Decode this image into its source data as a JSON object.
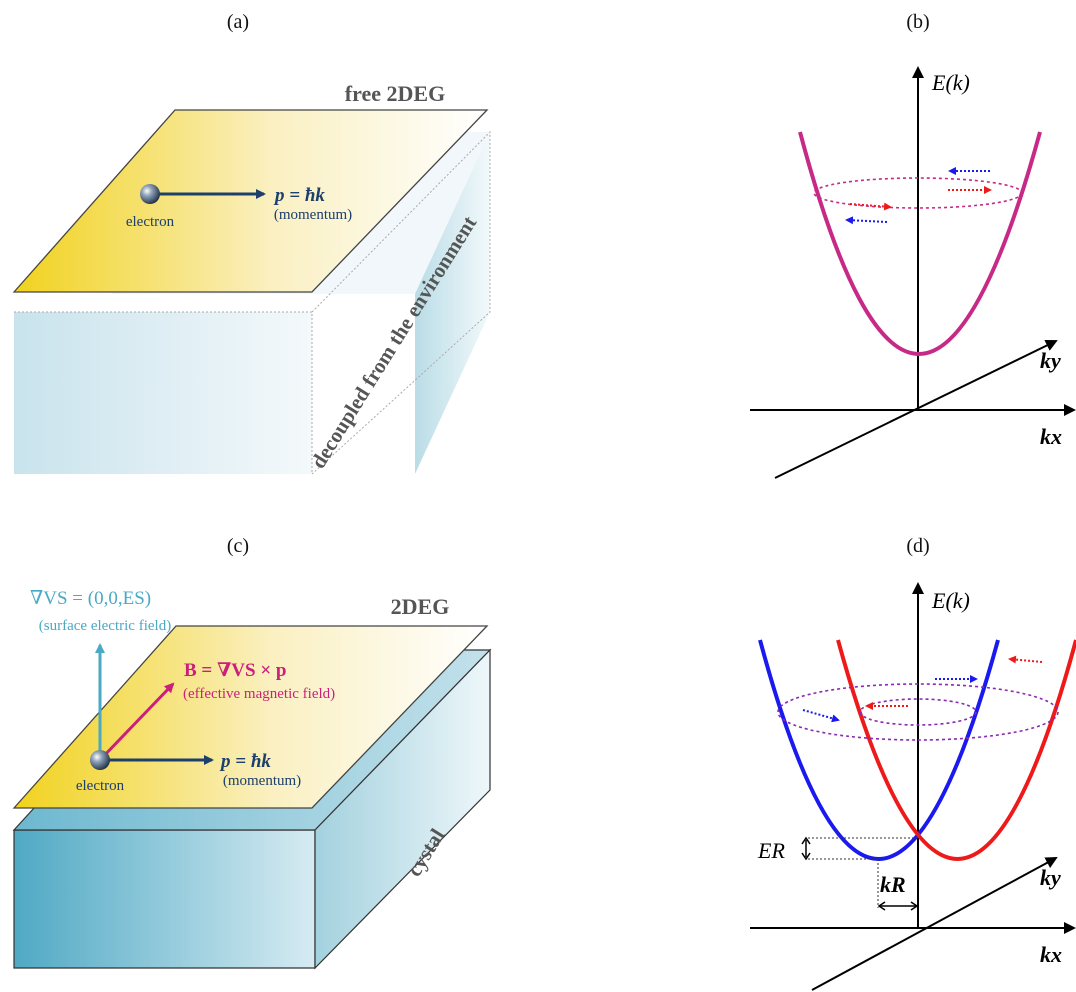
{
  "panels": {
    "a": {
      "label": "(a)",
      "title": "free 2DEG",
      "electron": "electron",
      "momentum_eq": "p = ħk",
      "momentum_note": "(momentum)",
      "side_text": "decoupled from the environment"
    },
    "b": {
      "label": "(b)",
      "energy_axis": "E(k)",
      "ky": "ky",
      "kx": "kx"
    },
    "c": {
      "label": "(c)",
      "title": "2DEG",
      "field_eq": "∇VS = (0,0,ES)",
      "field_note": "(surface electric field)",
      "b_eq": "B = ∇VS × p",
      "b_note": "(effective magnetic field)",
      "electron": "electron",
      "momentum_eq": "p = ħk",
      "momentum_note": "(momentum)",
      "side_text": "cystal"
    },
    "d": {
      "label": "(d)",
      "energy_axis": "E(k)",
      "er": "ER",
      "kr": "kR",
      "ky": "ky",
      "kx": "kx"
    }
  },
  "colors": {
    "momentum_arrow": "#1d3f6b",
    "field_arrow": "#4aa9c4",
    "b_arrow": "#cc1f7a",
    "parabola_b": "#c72a86",
    "parabola_blue": "#1a1aee",
    "parabola_red": "#ee1a1a",
    "title_gray": "#555555"
  }
}
